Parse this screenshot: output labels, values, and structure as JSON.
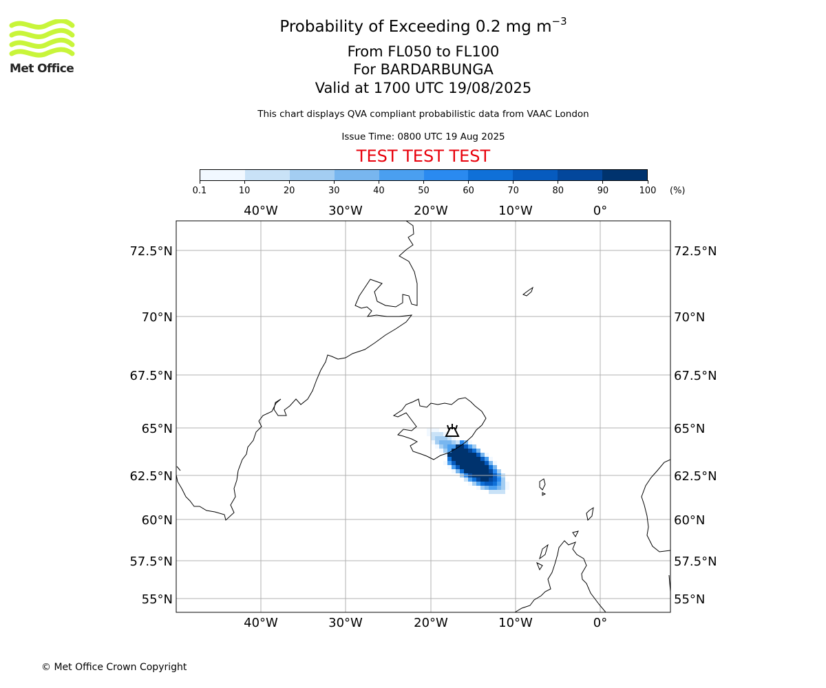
{
  "logo": {
    "text": "Met Office",
    "color": "#c8f53a"
  },
  "header": {
    "title_main": "Probability of Exceeding 0.2 mg m",
    "title_exponent": "−3",
    "line2": "From FL050 to FL100",
    "line3": "For BARDARBUNGA",
    "line4": "Valid at 1700 UTC 19/08/2025",
    "note": "This chart displays QVA compliant probabilistic data from VAAC London",
    "issue_time": "Issue Time: 0800 UTC 19 Aug 2025",
    "test_banner": "TEST TEST TEST",
    "test_color": "#e8000b"
  },
  "colorbar": {
    "ticks": [
      "0.1",
      "10",
      "20",
      "30",
      "40",
      "50",
      "60",
      "70",
      "80",
      "90",
      "100"
    ],
    "unit": "(%)",
    "colors": [
      "#f1f8ff",
      "#c9e2f7",
      "#a3cdf2",
      "#78b6ef",
      "#4a9ff0",
      "#2a8af0",
      "#0f70d8",
      "#065bbf",
      "#03479c",
      "#00336e"
    ]
  },
  "map": {
    "lon_labels": [
      "40°W",
      "30°W",
      "20°W",
      "10°W",
      "0°"
    ],
    "lat_labels": [
      "72.5°N",
      "70°N",
      "67.5°N",
      "65°N",
      "62.5°N",
      "60°N",
      "57.5°N",
      "55°N"
    ],
    "volcano": "BARDARBUNGA"
  },
  "footer": {
    "copyright": "© Met Office Crown Copyright"
  }
}
